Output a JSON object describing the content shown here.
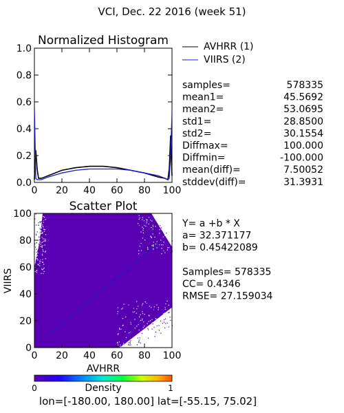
{
  "header": {
    "title": "VCI,  Dec. 22 2016 (week 51)"
  },
  "colors": {
    "avhrr": "#000000",
    "viirs": "#1a1acc",
    "density_low": "#5a00b4"
  },
  "histogram": {
    "title": "Normalized Histogram",
    "legend": [
      {
        "name": "AVHRR (1)"
      },
      {
        "name": "VIIRS (2)"
      }
    ],
    "xticks": [
      "0",
      "20",
      "40",
      "60",
      "80",
      "100"
    ],
    "yticks": [
      "0.0",
      "0.2",
      "0.4",
      "0.6",
      "0.8",
      "1.0"
    ]
  },
  "stats": [
    {
      "label": "samples=",
      "value": "578335"
    },
    {
      "label": "mean1=",
      "value": "45.5692"
    },
    {
      "label": "mean2=",
      "value": "53.0695"
    },
    {
      "label": "std1=",
      "value": "28.8500"
    },
    {
      "label": "std2=",
      "value": "30.1554"
    },
    {
      "label": "Diffmax=",
      "value": "100.000"
    },
    {
      "label": "Diffmin=",
      "value": "-100.000"
    },
    {
      "label": "mean(diff)=",
      "value": "7.50052"
    },
    {
      "label": "stddev(diff)=",
      "value": "31.3931"
    }
  ],
  "scatter": {
    "title": "Scatter Plot",
    "xlabel": "AVHRR",
    "ylabel": "VIIRS",
    "xticks": [
      "0",
      "20",
      "40",
      "60",
      "80",
      "100"
    ],
    "yticks": [
      "0",
      "20",
      "40",
      "60",
      "80",
      "100"
    ],
    "regression_lines": [
      "Y= a +b * X",
      "a= 32.371177",
      "b= 0.45422089",
      "",
      "Samples= 578335",
      "CC=  0.4346",
      "RMSE= 27.159034"
    ]
  },
  "colorbar": {
    "label": "Density",
    "min_label": "0",
    "max_label": "1"
  },
  "footer": {
    "text": "lon=[-180.00, 180.00] lat=[-55.15, 75.02]"
  },
  "chart_data": [
    {
      "type": "line",
      "title": "Normalized Histogram",
      "xlim": [
        0,
        100
      ],
      "ylim": [
        0,
        1.0
      ],
      "x": [
        0,
        1,
        2,
        3,
        5,
        10,
        20,
        30,
        40,
        50,
        60,
        70,
        80,
        90,
        95,
        97,
        98,
        99,
        100
      ],
      "series": [
        {
          "name": "AVHRR (1)",
          "values": [
            0.02,
            0.24,
            0.1,
            0.03,
            0.03,
            0.05,
            0.09,
            0.11,
            0.12,
            0.12,
            0.11,
            0.09,
            0.07,
            0.04,
            0.03,
            0.02,
            0.1,
            0.35,
            0.05
          ]
        },
        {
          "name": "VIIRS (2)",
          "values": [
            0.56,
            0.03,
            0.02,
            0.02,
            0.02,
            0.04,
            0.07,
            0.09,
            0.1,
            0.1,
            0.1,
            0.09,
            0.07,
            0.05,
            0.03,
            0.02,
            0.03,
            0.2,
            0.52
          ]
        }
      ]
    },
    {
      "type": "scatter",
      "title": "Scatter Plot",
      "xlabel": "AVHRR",
      "ylabel": "VIIRS",
      "xlim": [
        0,
        100
      ],
      "ylim": [
        0,
        100
      ],
      "regression": {
        "a": 32.371177,
        "b": 0.45422089
      },
      "samples": 578335,
      "cc": 0.4346,
      "rmse": 27.159034
    }
  ]
}
